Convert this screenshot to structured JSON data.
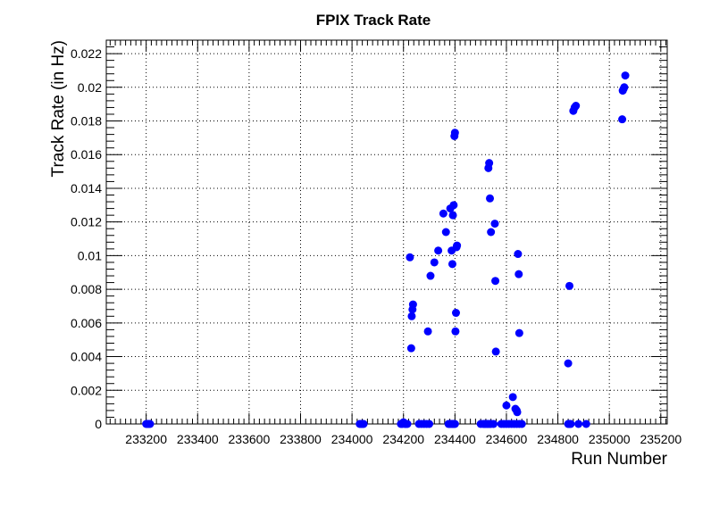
{
  "chart_data": {
    "type": "scatter",
    "title": "FPIX Track Rate",
    "xlabel": "Run Number",
    "ylabel": "Track Rate (in Hz)",
    "xlim": [
      233045,
      235225
    ],
    "ylim": [
      0,
      0.0228
    ],
    "xticks": [
      233200,
      233400,
      233600,
      233800,
      234000,
      234200,
      234400,
      234600,
      234800,
      235000,
      235200
    ],
    "yticks": [
      0,
      0.002,
      0.004,
      0.006,
      0.008,
      0.01,
      0.012,
      0.014,
      0.016,
      0.018,
      0.02,
      0.022
    ],
    "ytick_labels": [
      "0",
      "0.002",
      "0.004",
      "0.006",
      "0.008",
      "0.01",
      "0.012",
      "0.014",
      "0.016",
      "0.018",
      "0.02",
      "0.022"
    ],
    "grid": true,
    "marker_color": "#0000ff",
    "points": [
      [
        233200,
        0
      ],
      [
        233205,
        0
      ],
      [
        233210,
        0
      ],
      [
        233215,
        0
      ],
      [
        234030,
        0
      ],
      [
        234035,
        0
      ],
      [
        234040,
        0
      ],
      [
        234045,
        0
      ],
      [
        234190,
        0
      ],
      [
        234195,
        0
      ],
      [
        234200,
        0.0001
      ],
      [
        234205,
        0
      ],
      [
        234210,
        0
      ],
      [
        234215,
        0
      ],
      [
        234225,
        0.0099
      ],
      [
        234230,
        0.0045
      ],
      [
        234232,
        0.0064
      ],
      [
        234235,
        0.0068
      ],
      [
        234237,
        0.0071
      ],
      [
        234260,
        0
      ],
      [
        234270,
        0
      ],
      [
        234280,
        0
      ],
      [
        234290,
        0
      ],
      [
        234300,
        0
      ],
      [
        234295,
        0.0055
      ],
      [
        234305,
        0.0088
      ],
      [
        234320,
        0.0096
      ],
      [
        234335,
        0.0103
      ],
      [
        234355,
        0.0125
      ],
      [
        234365,
        0.0114
      ],
      [
        234375,
        0
      ],
      [
        234380,
        0
      ],
      [
        234385,
        0
      ],
      [
        234390,
        0
      ],
      [
        234395,
        0
      ],
      [
        234400,
        0
      ],
      [
        234382,
        0.0128
      ],
      [
        234387,
        0.0103
      ],
      [
        234390,
        0.0095
      ],
      [
        234392,
        0.0124
      ],
      [
        234395,
        0.013
      ],
      [
        234398,
        0.0171
      ],
      [
        234400,
        0.0173
      ],
      [
        234402,
        0.0055
      ],
      [
        234404,
        0.0066
      ],
      [
        234406,
        0.0105
      ],
      [
        234408,
        0.0106
      ],
      [
        234500,
        0
      ],
      [
        234510,
        0
      ],
      [
        234515,
        0
      ],
      [
        234520,
        0
      ],
      [
        234525,
        0
      ],
      [
        234530,
        0
      ],
      [
        234535,
        0
      ],
      [
        234540,
        0
      ],
      [
        234550,
        0
      ],
      [
        234530,
        0.0152
      ],
      [
        234533,
        0.0155
      ],
      [
        234536,
        0.0134
      ],
      [
        234540,
        0.0114
      ],
      [
        234555,
        0.0119
      ],
      [
        234557,
        0.0085
      ],
      [
        234559,
        0.0043
      ],
      [
        234580,
        0
      ],
      [
        234590,
        0
      ],
      [
        234600,
        0
      ],
      [
        234610,
        0
      ],
      [
        234620,
        0
      ],
      [
        234630,
        0
      ],
      [
        234640,
        0
      ],
      [
        234650,
        0
      ],
      [
        234660,
        0
      ],
      [
        234600,
        0.0011
      ],
      [
        234625,
        0.0016
      ],
      [
        234635,
        0.0009
      ],
      [
        234640,
        0.0008
      ],
      [
        234642,
        0.0007
      ],
      [
        234645,
        0.0101
      ],
      [
        234648,
        0.0089
      ],
      [
        234650,
        0.0054
      ],
      [
        234840,
        0
      ],
      [
        234845,
        0
      ],
      [
        234850,
        0
      ],
      [
        234880,
        0
      ],
      [
        234910,
        0
      ],
      [
        234840,
        0.0036
      ],
      [
        234845,
        0.0082
      ],
      [
        234860,
        0.0186
      ],
      [
        234865,
        0.0188
      ],
      [
        234870,
        0.0189
      ],
      [
        235050,
        0.0181
      ],
      [
        235052,
        0.0198
      ],
      [
        235055,
        0.0199
      ],
      [
        235058,
        0.02
      ],
      [
        235062,
        0.0207
      ]
    ]
  }
}
